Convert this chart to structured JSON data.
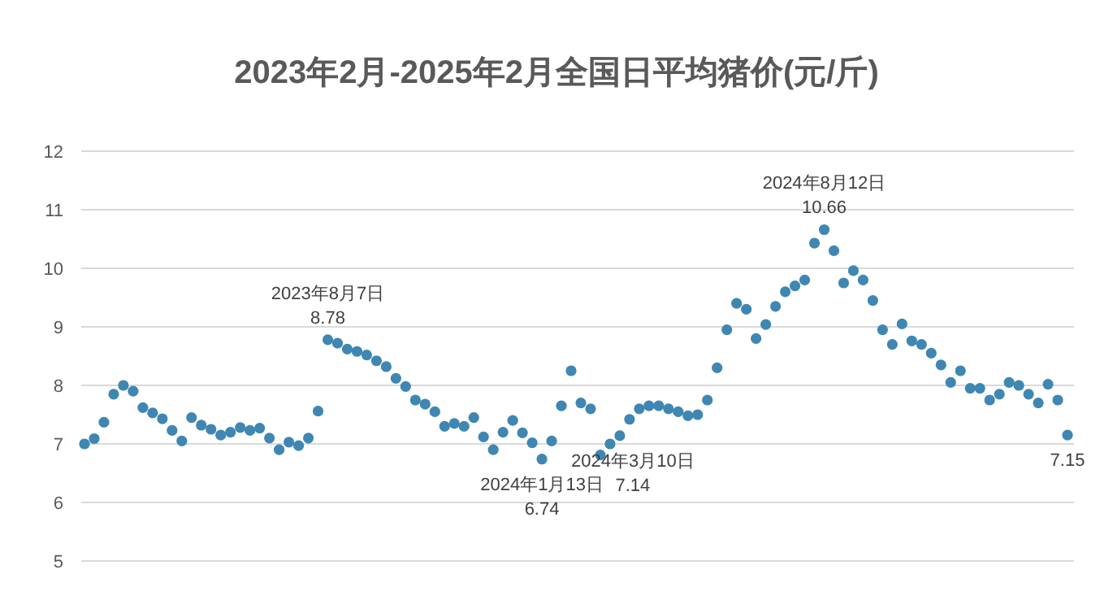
{
  "chart_data": {
    "type": "scatter",
    "title": "2023年2月-2025年2月全国日平均猪价(元/斤)",
    "categories": [
      null,
      null,
      null,
      null,
      null,
      null,
      null,
      null,
      null,
      null,
      null,
      null,
      null,
      null,
      null,
      null,
      null,
      null,
      null,
      null,
      null,
      null,
      null,
      null,
      null,
      null,
      null,
      null,
      null,
      null,
      null,
      null,
      null,
      null,
      null,
      null,
      null,
      null,
      null,
      null,
      null,
      null,
      null,
      null,
      null,
      null,
      null,
      null,
      null,
      null,
      null,
      null,
      null,
      null,
      null,
      null,
      null,
      null,
      null,
      null,
      null,
      null,
      null,
      null,
      null,
      null,
      null,
      null,
      null,
      null,
      null,
      null,
      null,
      null,
      null,
      null,
      null,
      null,
      null,
      null,
      null,
      null,
      null,
      null,
      null,
      null,
      null,
      null,
      null,
      null,
      null,
      null,
      null,
      null,
      null,
      null,
      null,
      null,
      null,
      null,
      null,
      null
    ],
    "values": [
      7.0,
      7.09,
      7.37,
      7.85,
      8.0,
      7.9,
      7.62,
      7.53,
      7.43,
      7.23,
      7.05,
      7.45,
      7.32,
      7.25,
      7.15,
      7.2,
      7.28,
      7.23,
      7.27,
      7.1,
      6.9,
      7.03,
      6.97,
      7.1,
      7.56,
      8.78,
      8.72,
      8.62,
      8.58,
      8.52,
      8.42,
      8.32,
      8.12,
      7.98,
      7.75,
      7.68,
      7.55,
      7.3,
      7.35,
      7.3,
      7.45,
      7.12,
      6.9,
      7.2,
      7.4,
      7.19,
      7.02,
      6.74,
      7.05,
      7.65,
      8.25,
      7.7,
      7.6,
      6.81,
      7.0,
      7.14,
      7.42,
      7.6,
      7.65,
      7.65,
      7.6,
      7.55,
      7.48,
      7.5,
      7.75,
      8.3,
      8.95,
      9.4,
      9.3,
      8.8,
      9.04,
      9.35,
      9.6,
      9.7,
      9.8,
      10.43,
      10.66,
      10.3,
      9.75,
      9.96,
      9.8,
      9.45,
      8.95,
      8.7,
      9.05,
      8.76,
      8.7,
      8.55,
      8.35,
      8.05,
      8.25,
      7.95,
      7.95,
      7.75,
      7.85,
      8.05,
      8.0,
      7.85,
      7.7,
      8.02,
      7.75,
      7.15
    ],
    "value_labels": [
      null,
      null,
      null,
      null,
      null,
      null,
      null,
      null,
      null,
      null,
      null,
      null,
      null,
      null,
      null,
      null,
      null,
      null,
      null,
      null,
      null,
      null,
      null,
      null,
      null,
      "8.78",
      null,
      null,
      null,
      null,
      null,
      null,
      null,
      null,
      null,
      null,
      null,
      null,
      null,
      null,
      null,
      null,
      null,
      null,
      null,
      null,
      null,
      "6.74",
      null,
      null,
      null,
      null,
      null,
      null,
      null,
      "7.14",
      null,
      null,
      null,
      null,
      null,
      null,
      null,
      null,
      null,
      null,
      null,
      null,
      null,
      null,
      null,
      null,
      null,
      null,
      null,
      null,
      "10.66",
      null,
      null,
      null,
      null,
      null,
      null,
      null,
      null,
      null,
      null,
      null,
      null,
      null,
      null,
      null,
      null,
      null,
      null,
      null,
      null,
      null,
      null,
      null,
      null,
      "7.15"
    ],
    "color": "#3f87b2",
    "marker": "circle",
    "grid": "y",
    "tick_labels": "y",
    "ylim": [
      5,
      12
    ],
    "yticks": [
      5,
      6,
      7,
      8,
      9,
      10,
      11,
      12
    ],
    "annotations": [
      {
        "text": "2023年8月7日",
        "y": 8.78
      },
      {
        "text": "2024年1月13日",
        "y": 6.74
      },
      {
        "text": "2024年3月10日",
        "y": 7.14
      },
      {
        "text": "2024年8月12日",
        "y": 10.66
      }
    ]
  }
}
